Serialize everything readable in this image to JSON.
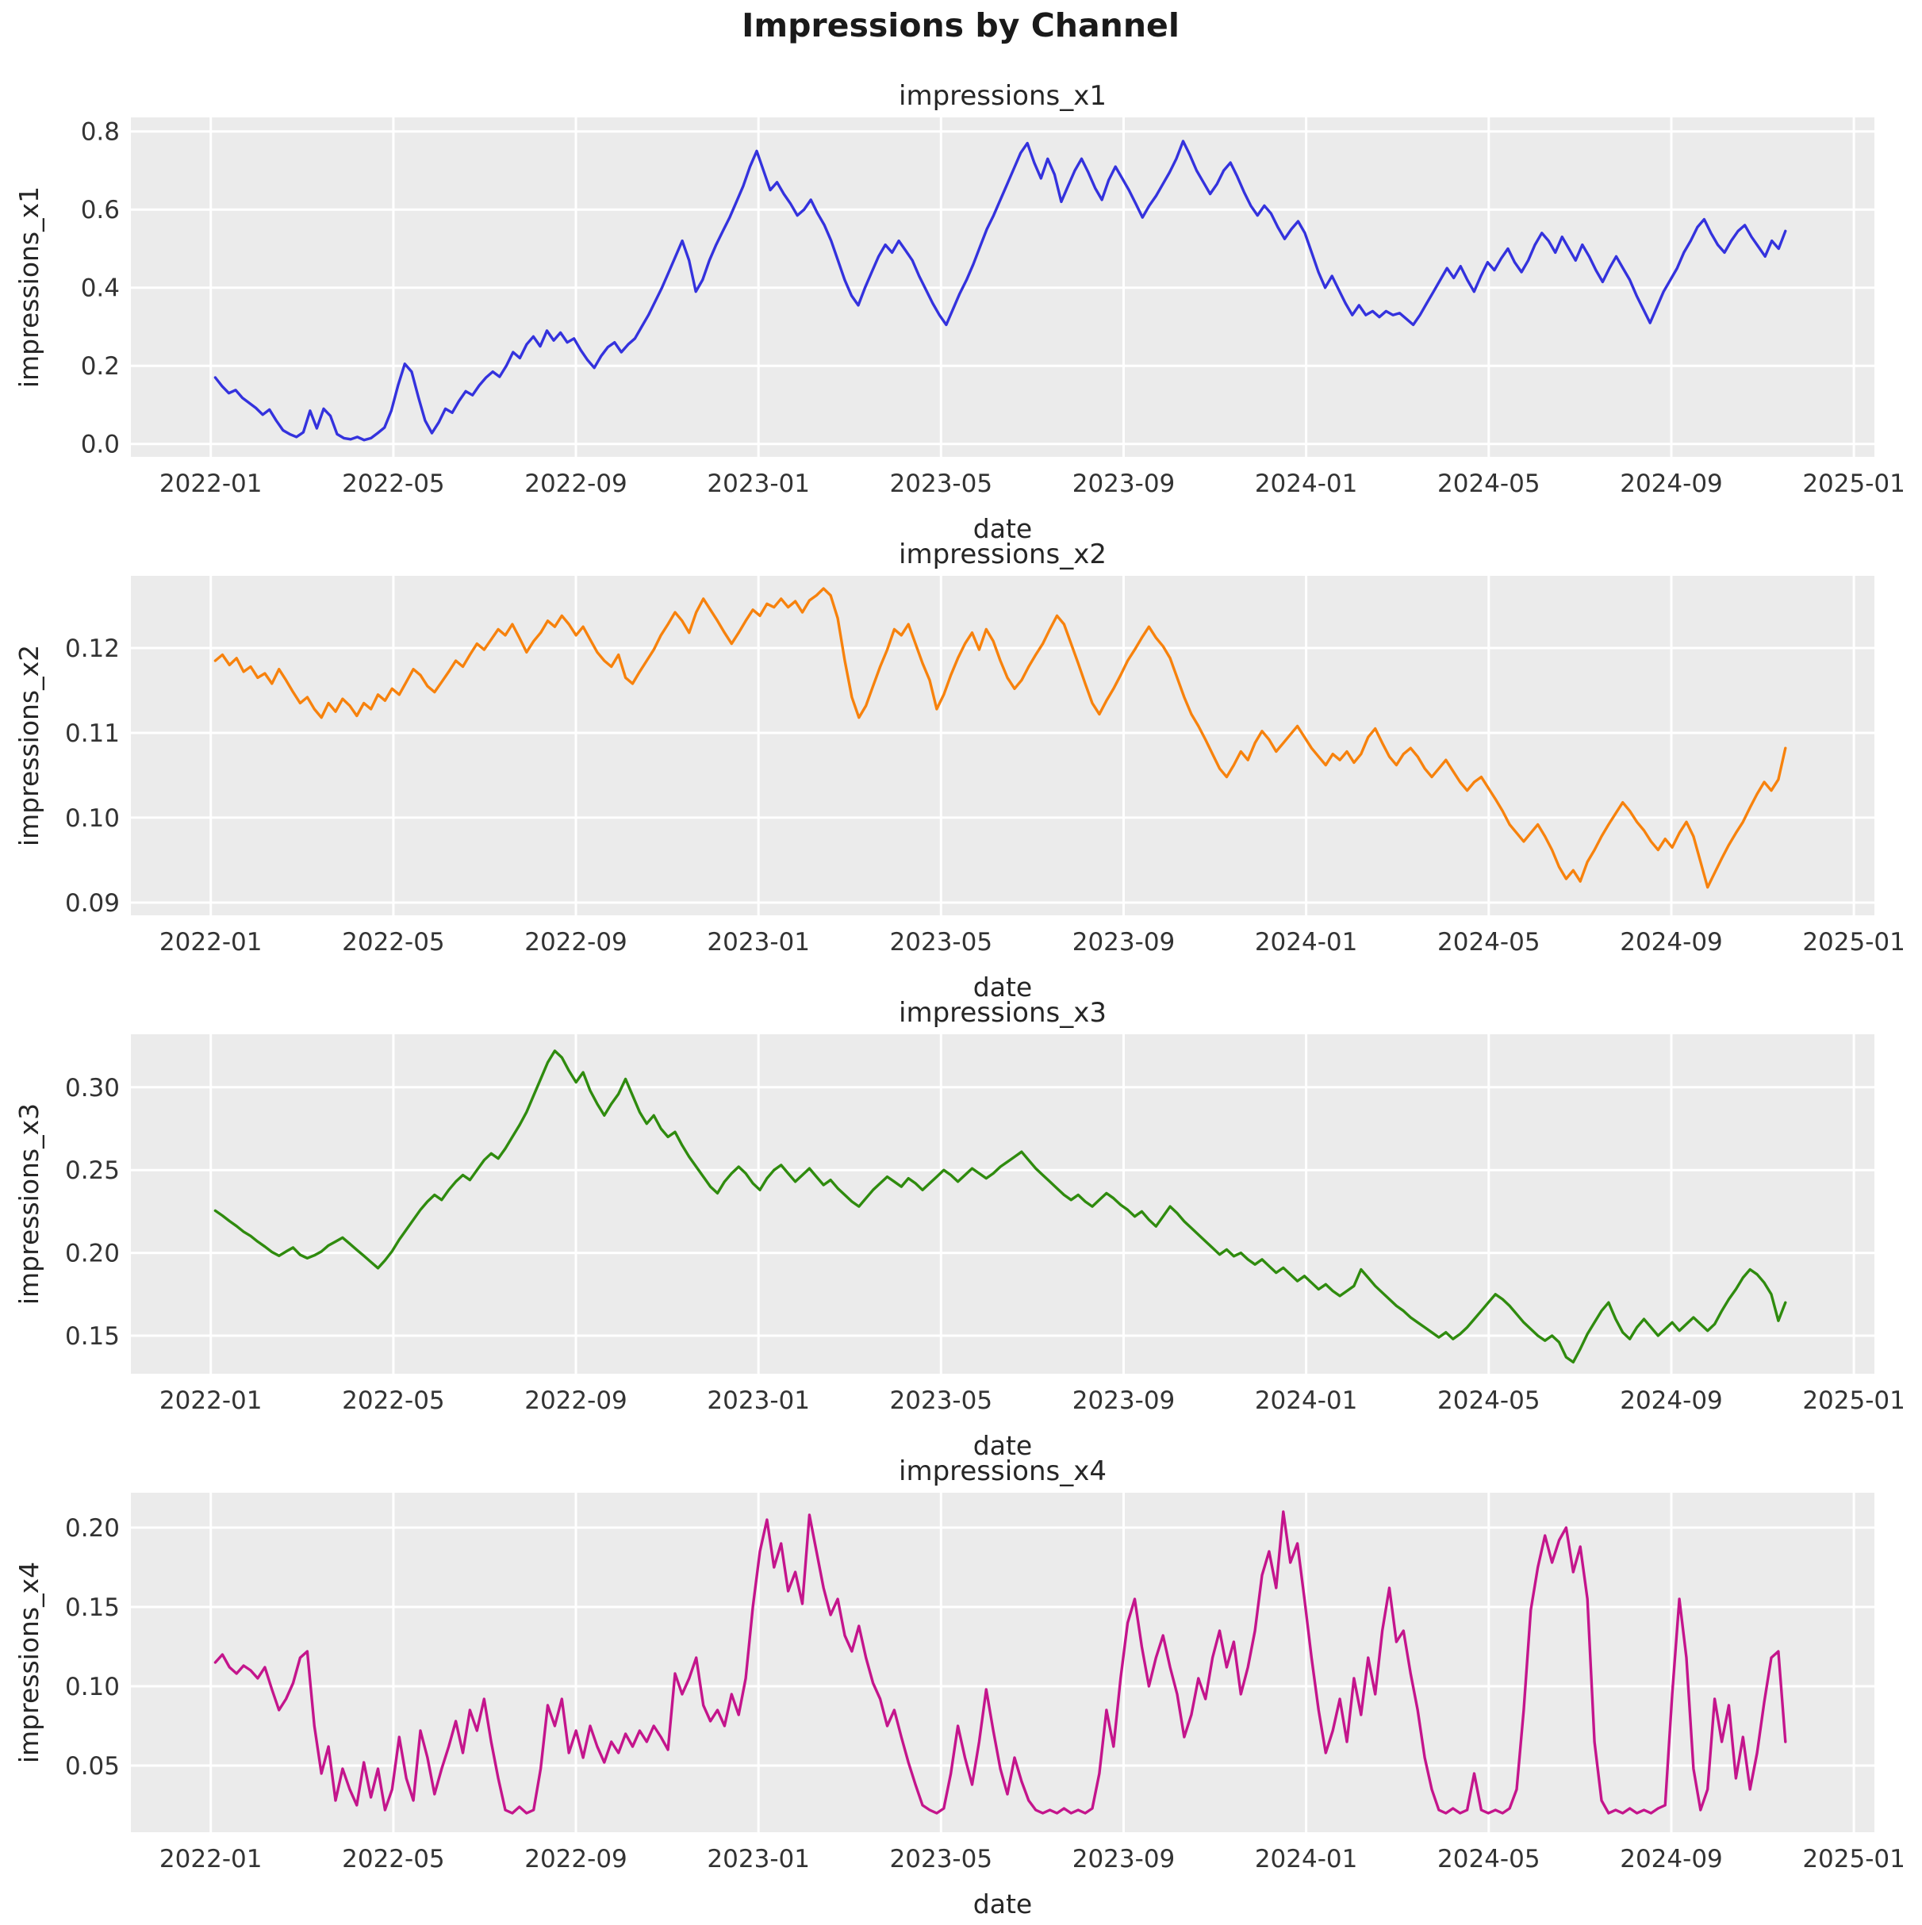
{
  "suptitle": "Impressions by Channel",
  "figure": {
    "background": "#ffffff",
    "panel_background": "#ebebeb",
    "grid_color": "#ffffff",
    "text_color": "#262626"
  },
  "chart_data": [
    {
      "type": "line",
      "title": "impressions_x1",
      "xlabel": "date",
      "ylabel": "impressions_x1",
      "color": "#3432dd",
      "legend": "none",
      "grid": true,
      "x_unit": "months since 2022-01",
      "x_range_months": [
        0.1,
        34.5
      ],
      "xlim": [
        -1.75,
        36.45
      ],
      "ylim": [
        -0.033,
        0.836
      ],
      "xtick_pos": [
        0,
        4,
        8,
        12,
        16,
        20,
        24,
        28,
        32,
        36
      ],
      "xtick_labels": [
        "2022-01",
        "2022-05",
        "2022-09",
        "2023-01",
        "2023-05",
        "2023-09",
        "2024-01",
        "2024-05",
        "2024-09",
        "2025-01"
      ],
      "ytick_pos": [
        0.0,
        0.2,
        0.4,
        0.6,
        0.8
      ],
      "ytick_labels": [
        "0.0",
        "0.2",
        "0.4",
        "0.6",
        "0.8"
      ],
      "values": [
        0.17,
        0.148,
        0.13,
        0.138,
        0.118,
        0.105,
        0.092,
        0.075,
        0.088,
        0.06,
        0.035,
        0.025,
        0.018,
        0.03,
        0.085,
        0.04,
        0.09,
        0.072,
        0.025,
        0.015,
        0.012,
        0.018,
        0.01,
        0.015,
        0.028,
        0.042,
        0.085,
        0.15,
        0.205,
        0.185,
        0.12,
        0.06,
        0.028,
        0.055,
        0.09,
        0.08,
        0.11,
        0.135,
        0.125,
        0.15,
        0.17,
        0.185,
        0.172,
        0.2,
        0.235,
        0.22,
        0.255,
        0.275,
        0.25,
        0.29,
        0.265,
        0.285,
        0.26,
        0.27,
        0.24,
        0.215,
        0.195,
        0.225,
        0.248,
        0.26,
        0.235,
        0.255,
        0.27,
        0.3,
        0.33,
        0.365,
        0.4,
        0.44,
        0.48,
        0.52,
        0.47,
        0.39,
        0.42,
        0.47,
        0.51,
        0.545,
        0.58,
        0.62,
        0.66,
        0.71,
        0.75,
        0.7,
        0.65,
        0.67,
        0.64,
        0.615,
        0.585,
        0.6,
        0.625,
        0.59,
        0.56,
        0.52,
        0.47,
        0.42,
        0.38,
        0.355,
        0.4,
        0.44,
        0.48,
        0.51,
        0.49,
        0.52,
        0.495,
        0.47,
        0.43,
        0.395,
        0.36,
        0.33,
        0.305,
        0.345,
        0.385,
        0.42,
        0.46,
        0.505,
        0.55,
        0.585,
        0.625,
        0.665,
        0.705,
        0.745,
        0.77,
        0.72,
        0.68,
        0.73,
        0.69,
        0.62,
        0.66,
        0.7,
        0.73,
        0.695,
        0.655,
        0.625,
        0.675,
        0.71,
        0.68,
        0.65,
        0.615,
        0.58,
        0.61,
        0.635,
        0.665,
        0.695,
        0.73,
        0.775,
        0.74,
        0.7,
        0.67,
        0.64,
        0.665,
        0.7,
        0.72,
        0.685,
        0.645,
        0.61,
        0.585,
        0.61,
        0.59,
        0.555,
        0.525,
        0.55,
        0.57,
        0.54,
        0.49,
        0.44,
        0.4,
        0.43,
        0.395,
        0.36,
        0.33,
        0.355,
        0.33,
        0.34,
        0.325,
        0.34,
        0.33,
        0.335,
        0.32,
        0.305,
        0.33,
        0.36,
        0.39,
        0.42,
        0.45,
        0.425,
        0.455,
        0.42,
        0.39,
        0.43,
        0.465,
        0.445,
        0.475,
        0.5,
        0.465,
        0.44,
        0.47,
        0.51,
        0.54,
        0.52,
        0.49,
        0.53,
        0.5,
        0.47,
        0.51,
        0.48,
        0.445,
        0.415,
        0.45,
        0.48,
        0.45,
        0.42,
        0.38,
        0.345,
        0.31,
        0.35,
        0.39,
        0.42,
        0.45,
        0.49,
        0.52,
        0.555,
        0.575,
        0.54,
        0.51,
        0.49,
        0.52,
        0.545,
        0.56,
        0.53,
        0.505,
        0.48,
        0.52,
        0.5,
        0.545
      ]
    },
    {
      "type": "line",
      "title": "impressions_x2",
      "xlabel": "date",
      "ylabel": "impressions_x2",
      "color": "#f7820d",
      "legend": "none",
      "grid": true,
      "x_unit": "months since 2022-01",
      "x_range_months": [
        0.1,
        34.5
      ],
      "xlim": [
        -1.75,
        36.45
      ],
      "ylim": [
        0.0885,
        0.1285
      ],
      "xtick_pos": [
        0,
        4,
        8,
        12,
        16,
        20,
        24,
        28,
        32,
        36
      ],
      "xtick_labels": [
        "2022-01",
        "2022-05",
        "2022-09",
        "2023-01",
        "2023-05",
        "2023-09",
        "2024-01",
        "2024-05",
        "2024-09",
        "2025-01"
      ],
      "ytick_pos": [
        0.09,
        0.1,
        0.11,
        0.12
      ],
      "ytick_labels": [
        "0.09",
        "0.10",
        "0.11",
        "0.12"
      ],
      "values": [
        0.1185,
        0.1192,
        0.118,
        0.1188,
        0.1172,
        0.1178,
        0.1165,
        0.117,
        0.1158,
        0.1175,
        0.1162,
        0.1148,
        0.1135,
        0.1142,
        0.1128,
        0.1118,
        0.1135,
        0.1125,
        0.114,
        0.1132,
        0.112,
        0.1135,
        0.1128,
        0.1145,
        0.1138,
        0.1152,
        0.1145,
        0.116,
        0.1175,
        0.1168,
        0.1155,
        0.1148,
        0.116,
        0.1172,
        0.1185,
        0.1178,
        0.1192,
        0.1205,
        0.1198,
        0.121,
        0.1222,
        0.1215,
        0.1228,
        0.1212,
        0.1195,
        0.1208,
        0.1218,
        0.1232,
        0.1225,
        0.1238,
        0.1228,
        0.1215,
        0.1225,
        0.121,
        0.1195,
        0.1185,
        0.1178,
        0.1192,
        0.1165,
        0.1158,
        0.1172,
        0.1185,
        0.1198,
        0.1215,
        0.1228,
        0.1242,
        0.1232,
        0.1218,
        0.1242,
        0.1258,
        0.1245,
        0.1232,
        0.1218,
        0.1205,
        0.1218,
        0.1232,
        0.1245,
        0.1238,
        0.1252,
        0.1248,
        0.1258,
        0.1248,
        0.1255,
        0.1242,
        0.1256,
        0.1262,
        0.127,
        0.1262,
        0.1235,
        0.1185,
        0.1142,
        0.1118,
        0.1132,
        0.1155,
        0.1178,
        0.1198,
        0.1222,
        0.1215,
        0.1228,
        0.1205,
        0.1182,
        0.1162,
        0.1128,
        0.1145,
        0.1168,
        0.1188,
        0.1205,
        0.1218,
        0.1198,
        0.1222,
        0.1208,
        0.1185,
        0.1165,
        0.1152,
        0.1162,
        0.1178,
        0.1192,
        0.1205,
        0.1222,
        0.1238,
        0.1228,
        0.1205,
        0.1182,
        0.1158,
        0.1135,
        0.1122,
        0.1138,
        0.1152,
        0.1168,
        0.1185,
        0.1198,
        0.1212,
        0.1225,
        0.1212,
        0.1202,
        0.1188,
        0.1165,
        0.1142,
        0.1122,
        0.1108,
        0.1092,
        0.1075,
        0.1058,
        0.1048,
        0.1062,
        0.1078,
        0.1068,
        0.1088,
        0.1102,
        0.1092,
        0.1078,
        0.1088,
        0.1098,
        0.1108,
        0.1095,
        0.1082,
        0.1072,
        0.1062,
        0.1075,
        0.1068,
        0.1078,
        0.1065,
        0.1075,
        0.1095,
        0.1105,
        0.1088,
        0.1072,
        0.1062,
        0.1075,
        0.1082,
        0.1072,
        0.1058,
        0.1048,
        0.1058,
        0.1068,
        0.1055,
        0.1042,
        0.1032,
        0.1042,
        0.1048,
        0.1035,
        0.1022,
        0.1008,
        0.0992,
        0.0982,
        0.0972,
        0.0982,
        0.0992,
        0.0978,
        0.0962,
        0.0942,
        0.0928,
        0.0938,
        0.0925,
        0.0948,
        0.0962,
        0.0978,
        0.0992,
        0.1005,
        0.1018,
        0.1008,
        0.0995,
        0.0985,
        0.0972,
        0.0962,
        0.0975,
        0.0965,
        0.0982,
        0.0995,
        0.0978,
        0.0948,
        0.0918,
        0.0935,
        0.0952,
        0.0968,
        0.0982,
        0.0995,
        0.1012,
        0.1028,
        0.1042,
        0.1032,
        0.1045,
        0.1082
      ]
    },
    {
      "type": "line",
      "title": "impressions_x3",
      "xlabel": "date",
      "ylabel": "impressions_x3",
      "color": "#2f8b0e",
      "legend": "none",
      "grid": true,
      "x_unit": "months since 2022-01",
      "x_range_months": [
        0.1,
        34.5
      ],
      "xlim": [
        -1.75,
        36.45
      ],
      "ylim": [
        0.127,
        0.332
      ],
      "xtick_pos": [
        0,
        4,
        8,
        12,
        16,
        20,
        24,
        28,
        32,
        36
      ],
      "xtick_labels": [
        "2022-01",
        "2022-05",
        "2022-09",
        "2023-01",
        "2023-05",
        "2023-09",
        "2024-01",
        "2024-05",
        "2024-09",
        "2025-01"
      ],
      "ytick_pos": [
        0.15,
        0.2,
        0.25,
        0.3
      ],
      "ytick_labels": [
        "0.15",
        "0.20",
        "0.25",
        "0.30"
      ],
      "values": [
        0.2255,
        0.2225,
        0.2192,
        0.2162,
        0.2128,
        0.2102,
        0.2068,
        0.2038,
        0.2005,
        0.1982,
        0.2008,
        0.2032,
        0.1988,
        0.1968,
        0.1985,
        0.2008,
        0.2045,
        0.2068,
        0.2092,
        0.2055,
        0.2018,
        0.1982,
        0.1945,
        0.1908,
        0.1955,
        0.201,
        0.208,
        0.214,
        0.22,
        0.226,
        0.231,
        0.235,
        0.232,
        0.238,
        0.243,
        0.247,
        0.244,
        0.25,
        0.256,
        0.26,
        0.257,
        0.263,
        0.27,
        0.277,
        0.285,
        0.295,
        0.305,
        0.315,
        0.322,
        0.318,
        0.31,
        0.303,
        0.309,
        0.298,
        0.29,
        0.283,
        0.29,
        0.296,
        0.305,
        0.295,
        0.285,
        0.278,
        0.283,
        0.275,
        0.27,
        0.273,
        0.265,
        0.258,
        0.252,
        0.246,
        0.24,
        0.236,
        0.243,
        0.248,
        0.252,
        0.248,
        0.242,
        0.238,
        0.245,
        0.25,
        0.253,
        0.248,
        0.243,
        0.247,
        0.251,
        0.246,
        0.241,
        0.244,
        0.239,
        0.235,
        0.231,
        0.228,
        0.233,
        0.238,
        0.242,
        0.246,
        0.243,
        0.24,
        0.245,
        0.242,
        0.238,
        0.242,
        0.246,
        0.25,
        0.247,
        0.243,
        0.247,
        0.251,
        0.248,
        0.245,
        0.248,
        0.252,
        0.255,
        0.258,
        0.261,
        0.256,
        0.251,
        0.247,
        0.243,
        0.239,
        0.235,
        0.232,
        0.235,
        0.231,
        0.228,
        0.232,
        0.236,
        0.233,
        0.229,
        0.226,
        0.222,
        0.225,
        0.22,
        0.216,
        0.222,
        0.228,
        0.224,
        0.219,
        0.215,
        0.211,
        0.207,
        0.203,
        0.199,
        0.202,
        0.198,
        0.2,
        0.196,
        0.193,
        0.196,
        0.192,
        0.188,
        0.191,
        0.187,
        0.183,
        0.186,
        0.182,
        0.178,
        0.181,
        0.177,
        0.174,
        0.177,
        0.18,
        0.19,
        0.185,
        0.18,
        0.176,
        0.172,
        0.168,
        0.165,
        0.161,
        0.158,
        0.155,
        0.152,
        0.149,
        0.152,
        0.148,
        0.151,
        0.155,
        0.16,
        0.165,
        0.17,
        0.175,
        0.172,
        0.168,
        0.163,
        0.158,
        0.154,
        0.15,
        0.147,
        0.15,
        0.146,
        0.137,
        0.134,
        0.142,
        0.151,
        0.158,
        0.165,
        0.17,
        0.16,
        0.152,
        0.148,
        0.155,
        0.16,
        0.155,
        0.15,
        0.154,
        0.158,
        0.153,
        0.157,
        0.161,
        0.157,
        0.153,
        0.157,
        0.165,
        0.172,
        0.178,
        0.185,
        0.19,
        0.187,
        0.182,
        0.175,
        0.159,
        0.17
      ]
    },
    {
      "type": "line",
      "title": "impressions_x4",
      "xlabel": "date",
      "ylabel": "impressions_x4",
      "color": "#c4158c",
      "legend": "none",
      "grid": true,
      "x_unit": "months since 2022-01",
      "x_range_months": [
        0.1,
        34.5
      ],
      "xlim": [
        -1.75,
        36.45
      ],
      "ylim": [
        0.008,
        0.222
      ],
      "xtick_pos": [
        0,
        4,
        8,
        12,
        16,
        20,
        24,
        28,
        32,
        36
      ],
      "xtick_labels": [
        "2022-01",
        "2022-05",
        "2022-09",
        "2023-01",
        "2023-05",
        "2023-09",
        "2024-01",
        "2024-05",
        "2024-09",
        "2025-01"
      ],
      "ytick_pos": [
        0.05,
        0.1,
        0.15,
        0.2
      ],
      "ytick_labels": [
        "0.05",
        "0.10",
        "0.15",
        "0.20"
      ],
      "values": [
        0.115,
        0.12,
        0.112,
        0.108,
        0.113,
        0.11,
        0.105,
        0.112,
        0.098,
        0.085,
        0.092,
        0.102,
        0.118,
        0.122,
        0.075,
        0.045,
        0.062,
        0.028,
        0.048,
        0.035,
        0.025,
        0.052,
        0.03,
        0.048,
        0.022,
        0.035,
        0.068,
        0.042,
        0.028,
        0.072,
        0.055,
        0.032,
        0.048,
        0.062,
        0.078,
        0.058,
        0.085,
        0.072,
        0.092,
        0.065,
        0.042,
        0.022,
        0.02,
        0.024,
        0.02,
        0.022,
        0.048,
        0.088,
        0.075,
        0.092,
        0.058,
        0.072,
        0.055,
        0.075,
        0.062,
        0.052,
        0.065,
        0.058,
        0.07,
        0.062,
        0.072,
        0.065,
        0.075,
        0.068,
        0.06,
        0.108,
        0.095,
        0.105,
        0.118,
        0.088,
        0.078,
        0.085,
        0.075,
        0.095,
        0.082,
        0.105,
        0.15,
        0.185,
        0.205,
        0.175,
        0.19,
        0.16,
        0.172,
        0.152,
        0.208,
        0.185,
        0.162,
        0.145,
        0.155,
        0.132,
        0.122,
        0.138,
        0.118,
        0.102,
        0.092,
        0.075,
        0.085,
        0.068,
        0.052,
        0.038,
        0.025,
        0.022,
        0.02,
        0.023,
        0.045,
        0.075,
        0.055,
        0.038,
        0.065,
        0.098,
        0.072,
        0.048,
        0.032,
        0.055,
        0.04,
        0.028,
        0.022,
        0.02,
        0.022,
        0.02,
        0.023,
        0.02,
        0.022,
        0.02,
        0.023,
        0.045,
        0.085,
        0.062,
        0.105,
        0.14,
        0.155,
        0.125,
        0.1,
        0.118,
        0.132,
        0.112,
        0.095,
        0.068,
        0.082,
        0.105,
        0.092,
        0.118,
        0.135,
        0.112,
        0.128,
        0.095,
        0.112,
        0.135,
        0.17,
        0.185,
        0.162,
        0.21,
        0.178,
        0.19,
        0.155,
        0.118,
        0.085,
        0.058,
        0.072,
        0.092,
        0.065,
        0.105,
        0.082,
        0.118,
        0.095,
        0.135,
        0.162,
        0.128,
        0.135,
        0.108,
        0.085,
        0.055,
        0.035,
        0.022,
        0.02,
        0.023,
        0.02,
        0.022,
        0.045,
        0.022,
        0.02,
        0.022,
        0.02,
        0.023,
        0.035,
        0.085,
        0.148,
        0.175,
        0.195,
        0.178,
        0.192,
        0.2,
        0.172,
        0.188,
        0.155,
        0.065,
        0.028,
        0.02,
        0.022,
        0.02,
        0.023,
        0.02,
        0.022,
        0.02,
        0.023,
        0.025,
        0.095,
        0.155,
        0.118,
        0.048,
        0.022,
        0.035,
        0.092,
        0.065,
        0.088,
        0.042,
        0.068,
        0.035,
        0.058,
        0.09,
        0.118,
        0.122,
        0.065
      ]
    }
  ]
}
